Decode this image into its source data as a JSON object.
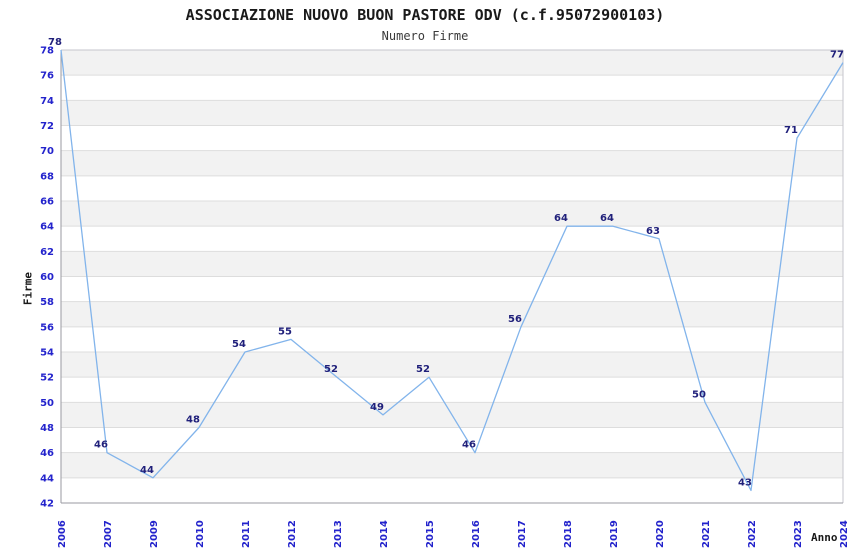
{
  "header": {
    "title": "ASSOCIAZIONE NUOVO BUON PASTORE ODV (c.f.95072900103)",
    "subtitle": "Numero Firme"
  },
  "chart_data": {
    "type": "line",
    "title": "ASSOCIAZIONE NUOVO BUON PASTORE ODV (c.f.95072900103)",
    "subtitle": "Numero Firme",
    "xlabel": "Anno",
    "ylabel": "Firme",
    "categories": [
      "2006",
      "2007",
      "2009",
      "2010",
      "2011",
      "2012",
      "2013",
      "2014",
      "2015",
      "2016",
      "2017",
      "2018",
      "2019",
      "2020",
      "2021",
      "2022",
      "2023",
      "2024"
    ],
    "series": [
      {
        "name": "Numero Firme",
        "values": [
          78,
          46,
          44,
          48,
          54,
          55,
          52,
          49,
          52,
          46,
          56,
          64,
          64,
          63,
          50,
          43,
          71,
          77
        ]
      }
    ],
    "data_labels_shown": true,
    "ylim": [
      42,
      78
    ],
    "ytick_step": 2,
    "grid": "horizontal alternating bands",
    "legend_position": "none",
    "colors": {
      "line": "#82b4eb",
      "tick_label": "#2323cc",
      "data_label": "#1f1f7a",
      "band_gray": "#f2f2f2",
      "gridline": "#dddddd",
      "axis_border": "#9a9aa2",
      "outer_border": "#c6c6cc",
      "title_text": "#1a1a1a"
    }
  }
}
